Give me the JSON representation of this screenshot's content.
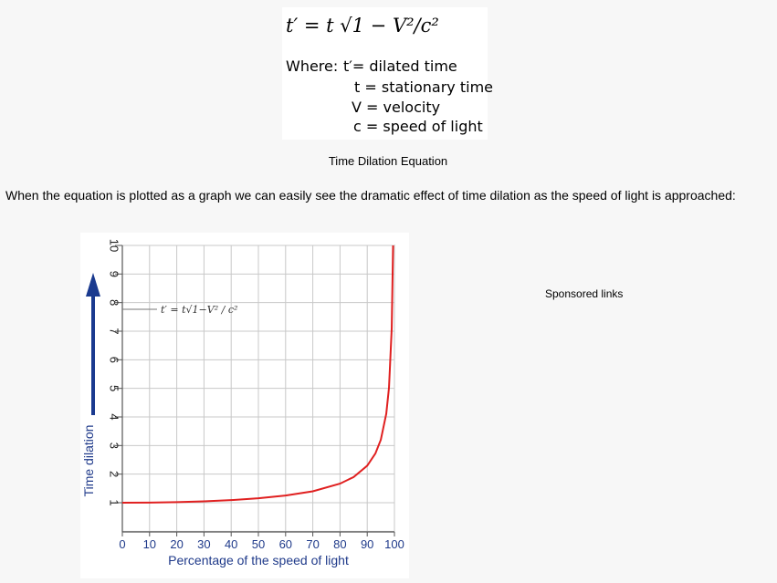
{
  "equation": {
    "formula": "t′ = t √1 − V²/c²",
    "where_label": "Where:",
    "definitions": [
      "t′= dilated time",
      "t = stationary time",
      "V = velocity",
      "c = speed of light"
    ],
    "caption": "Time Dilation Equation"
  },
  "intro_text": "When the equation is plotted as a graph we can easily see the dramatic effect of time dilation as the speed of light is approached:",
  "sponsored": "Sponsored links",
  "colors": {
    "curve": "#e02020",
    "arrow": "#1a3a8f",
    "axis_text": "#1f3a8a",
    "grid": "#c8c8c8"
  },
  "chart_data": {
    "type": "line",
    "xlabel": "Percentage of the speed of light",
    "ylabel": "Time dilation",
    "annotation": "t′ = t√1−V² / c²",
    "xlim": [
      0,
      100
    ],
    "ylim": [
      0,
      10
    ],
    "x_ticks": [
      "0",
      "10",
      "20",
      "30",
      "40",
      "50",
      "60",
      "70",
      "80",
      "90",
      "100"
    ],
    "y_ticks": [
      "1",
      "2",
      "3",
      "4",
      "5",
      "6",
      "7",
      "8",
      "9",
      "10"
    ],
    "grid": true,
    "series": [
      {
        "x": [
          0,
          10,
          20,
          30,
          40,
          50,
          60,
          70,
          80,
          85,
          90,
          93,
          95,
          97,
          98,
          99,
          99.5
        ],
        "y": [
          1.0,
          1.005,
          1.021,
          1.048,
          1.091,
          1.155,
          1.25,
          1.4,
          1.667,
          1.898,
          2.294,
          2.721,
          3.203,
          4.113,
          5.025,
          7.089,
          10.0
        ]
      }
    ]
  }
}
